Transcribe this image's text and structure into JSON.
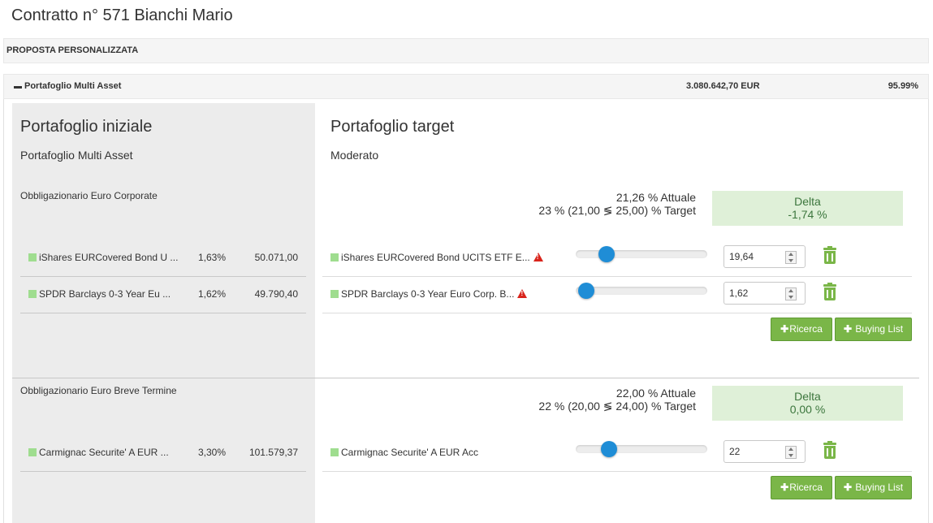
{
  "page": {
    "title": "Contratto n° 571 Bianchi Mario"
  },
  "proposal": {
    "label": "PROPOSTA PERSONALIZZATA"
  },
  "portfolio": {
    "name": "Portafoglio Multi Asset",
    "value": "3.080.642,70 EUR",
    "pct": "95.99%"
  },
  "initial": {
    "heading": "Portafoglio iniziale",
    "sub": "Portafoglio Multi Asset"
  },
  "target": {
    "heading": "Portafoglio target",
    "sub": "Moderato"
  },
  "colors": {
    "accent_green": "#7ab648",
    "slider_blue": "#1f8dd6",
    "delta_bg": "#dff0d8",
    "delta_text": "#3c763d",
    "warning_red": "#d9241b",
    "instrument_square": "#9fdd8f"
  },
  "categories": [
    {
      "name": "Obbligazionario Euro Corporate",
      "actual": "21,26 % Attuale",
      "target": "23 % (21,00 ≶ 25,00) % Target",
      "delta_label": "Delta",
      "delta_value": "-1,74 %",
      "left_rows": [
        {
          "name": "iShares EURCovered Bond U ...",
          "pct": "1,63%",
          "amount": "50.071,00"
        },
        {
          "name": "SPDR Barclays 0-3 Year Eu ...",
          "pct": "1,62%",
          "amount": "49.790,40"
        }
      ],
      "right_rows": [
        {
          "name": "iShares EURCovered Bond UCITS ETF E...",
          "value": "19,64",
          "slider": 0.2,
          "warning": "warning-icon"
        },
        {
          "name": "SPDR Barclays 0-3 Year Euro Corp. B...",
          "value": "1,62",
          "slider": 0.02,
          "warning": "warning-icon"
        }
      ],
      "buttons": {
        "ricerca": "Ricerca",
        "buying": "Buying List"
      }
    },
    {
      "name": "Obbligazionario Euro Breve Termine",
      "actual": "22,00 % Attuale",
      "target": "22 % (20,00 ≶ 24,00) % Target",
      "delta_label": "Delta",
      "delta_value": "0,00 %",
      "left_rows": [
        {
          "name": "Carmignac Securite' A EUR ...",
          "pct": "3,30%",
          "amount": "101.579,37"
        }
      ],
      "right_rows": [
        {
          "name": "Carmignac Securite' A EUR Acc",
          "value": "22",
          "slider": 0.22
        }
      ],
      "buttons": {
        "ricerca": "Ricerca",
        "buying": "Buying List"
      }
    }
  ]
}
